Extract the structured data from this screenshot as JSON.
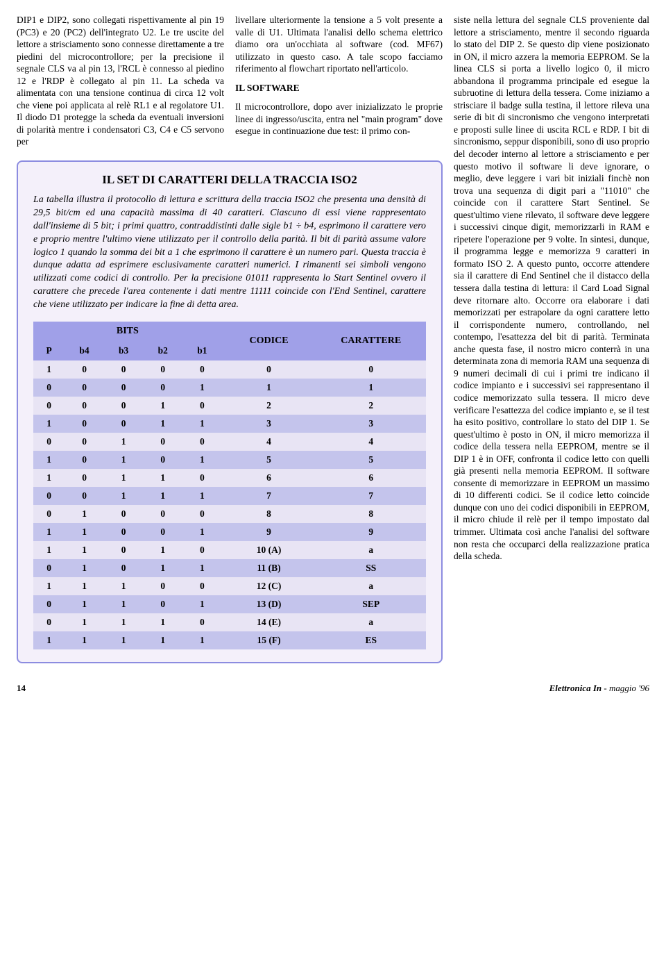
{
  "col1_para": "DIP1 e DIP2, sono collegati rispettivamente al pin 19 (PC3) e 20 (PC2) dell'integrato U2. Le tre uscite del lettore a strisciamento sono connesse direttamente a tre piedini del microcontrollore; per la precisione il segnale CLS va al pin 13, l'RCL è connesso al piedino 12 e l'RDP è collegato al pin 11. La scheda va alimentata con una tensione continua di circa 12 volt che viene poi applicata al relè RL1 e al regolatore U1. Il diodo D1 protegge la scheda da eventuali inversioni di polarità mentre i condensatori C3, C4 e C5 servono per",
  "col2_para1": "livellare ulteriormente la tensione a 5 volt presente a valle di U1. Ultimata l'analisi dello schema elettrico diamo ora un'occhiata al software (cod. MF67) utilizzato in questo caso. A tale scopo facciamo riferimento al flowchart riportato nell'articolo.",
  "col2_heading": "IL SOFTWARE",
  "col2_para2": "Il microcontrollore, dopo aver inizializzato le proprie linee di ingresso/uscita, entra nel \"main program\" dove esegue in continuazione due test: il primo con-",
  "col3_para": "siste nella lettura del segnale CLS proveniente dal lettore a strisciamento, mentre il secondo riguarda lo stato del DIP 2. Se questo dip viene posizionato in ON, il micro azzera la memoria EEPROM. Se la linea CLS si porta a livello logico 0, il micro abbandona il programma principale ed esegue la subruotine di lettura della tessera. Come iniziamo a strisciare il badge sulla testina, il lettore rileva una serie di bit di sincronismo che vengono interpretati e proposti sulle linee di uscita RCL e RDP. I bit di sincronismo, seppur disponibili, sono di uso proprio del decoder interno al lettore a strisciamento e per questo motivo il software li deve ignorare, o meglio, deve leggere i vari bit iniziali finchè non trova una sequenza di digit pari a \"11010\" che coincide con il carattere Start Sentinel. Se quest'ultimo viene rilevato, il software deve leggere i successivi cinque digit, memorizzarli in RAM e ripetere l'operazione per 9 volte. In sintesi, dunque, il programma legge e memorizza 9 caratteri in formato ISO 2. A questo punto, occorre attendere sia il carattere di End Sentinel che il distacco della tessera dalla testina di lettura: il Card Load Signal deve ritornare alto. Occorre ora elaborare i dati memorizzati per estrapolare da ogni carattere letto il corrispondente numero, controllando, nel contempo, l'esattezza del bit di parità. Terminata anche questa fase, il nostro micro conterrà in una determinata zona di memoria RAM una sequenza di 9 numeri decimali di cui i primi tre indicano il codice impianto e i successivi sei rappresentano il codice memorizzato sulla tessera. Il micro deve verificare l'esattezza del codice impianto e, se il test ha esito positivo, controllare lo stato del DIP 1. Se quest'ultimo è posto in ON, il micro memorizza il codice della tessera nella EEPROM, mentre se il DIP 1 è in OFF, confronta il codice letto con quelli già presenti nella memoria EEPROM. Il software consente di memorizzare in EEPROM un massimo di 10 differenti codici. Se il codice letto coincide dunque con uno dei codici disponibili in EEPROM, il micro chiude il relè per il tempo impostato dal trimmer. Ultimata così anche l'analisi del software non resta che occuparci della realizzazione pratica della scheda.",
  "callout": {
    "title": "IL SET DI CARATTERI DELLA TRACCIA ISO2",
    "intro": "La tabella illustra il protocollo di lettura e scrittura della traccia ISO2 che presenta una densità di 29,5 bit/cm ed una capacità massima di 40 caratteri. Ciascuno di essi viene rappresentato dall'insieme di 5 bit; i primi quattro, contraddistinti dalle sigle b1 ÷ b4, esprimono il carattere vero e proprio mentre l'ultimo viene utilizzato per il controllo della parità. Il bit di parità assume valore logico 1 quando la somma dei bit a 1 che esprimono il carattere è un numero pari. Questa traccia è dunque adatta ad esprimere esclusivamente caratteri numerici. I rimanenti sei simboli vengono utilizzati come codici di controllo. Per la precisione 01011 rappresenta lo Start Sentinel ovvero il carattere che precede l'area contenente i dati mentre 11111 coincide con l'End Sentinel, carattere che viene utilizzato per indicare la fine di detta area."
  },
  "table": {
    "type": "table",
    "header_bits": "BITS",
    "header_codice": "CODICE",
    "header_carattere": "CARATTERE",
    "subheaders": [
      "P",
      "b4",
      "b3",
      "b2",
      "b1"
    ],
    "header_bg": "#a0a0e8",
    "row_light_bg": "#e8e4f4",
    "row_dark_bg": "#c4c4ec",
    "border_color": "#8c8ce0",
    "rows": [
      [
        "1",
        "0",
        "0",
        "0",
        "0",
        "0",
        "0"
      ],
      [
        "0",
        "0",
        "0",
        "0",
        "1",
        "1",
        "1"
      ],
      [
        "0",
        "0",
        "0",
        "1",
        "0",
        "2",
        "2"
      ],
      [
        "1",
        "0",
        "0",
        "1",
        "1",
        "3",
        "3"
      ],
      [
        "0",
        "0",
        "1",
        "0",
        "0",
        "4",
        "4"
      ],
      [
        "1",
        "0",
        "1",
        "0",
        "1",
        "5",
        "5"
      ],
      [
        "1",
        "0",
        "1",
        "1",
        "0",
        "6",
        "6"
      ],
      [
        "0",
        "0",
        "1",
        "1",
        "1",
        "7",
        "7"
      ],
      [
        "0",
        "1",
        "0",
        "0",
        "0",
        "8",
        "8"
      ],
      [
        "1",
        "1",
        "0",
        "0",
        "1",
        "9",
        "9"
      ],
      [
        "1",
        "1",
        "0",
        "1",
        "0",
        "10 (A)",
        "a"
      ],
      [
        "0",
        "1",
        "0",
        "1",
        "1",
        "11 (B)",
        "SS"
      ],
      [
        "1",
        "1",
        "1",
        "0",
        "0",
        "12 (C)",
        "a"
      ],
      [
        "0",
        "1",
        "1",
        "0",
        "1",
        "13 (D)",
        "SEP"
      ],
      [
        "0",
        "1",
        "1",
        "1",
        "0",
        "14 (E)",
        "a"
      ],
      [
        "1",
        "1",
        "1",
        "1",
        "1",
        "15 (F)",
        "ES"
      ]
    ]
  },
  "footer": {
    "page": "14",
    "magazine": "Elettronica In",
    "issue": " - maggio '96"
  }
}
